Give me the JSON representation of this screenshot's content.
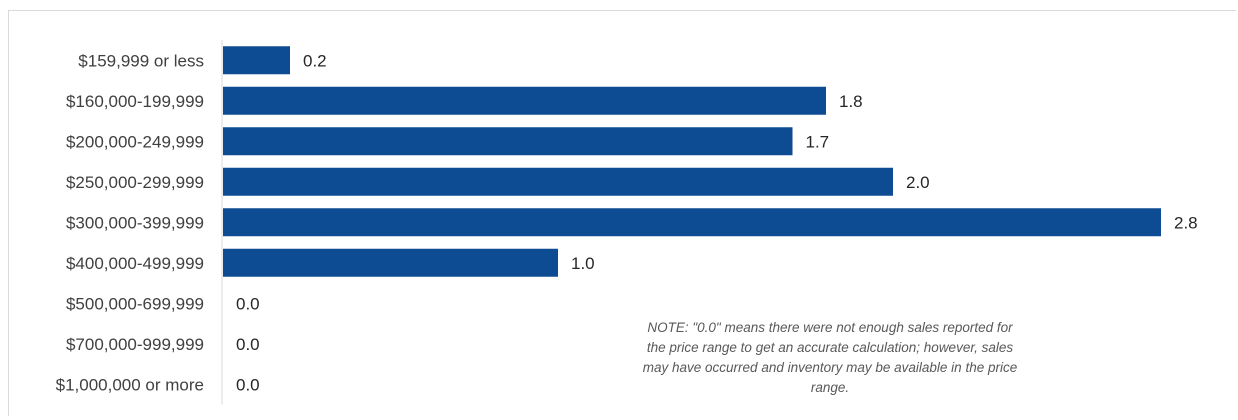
{
  "chart_data": {
    "type": "bar",
    "orientation": "horizontal",
    "categories": [
      "$159,999 or less",
      "$160,000-199,999",
      "$200,000-249,999",
      "$250,000-299,999",
      "$300,000-399,999",
      "$400,000-499,999",
      "$500,000-699,999",
      "$700,000-999,999",
      "$1,000,000 or more"
    ],
    "values": [
      0.2,
      1.8,
      1.7,
      2.0,
      2.8,
      1.0,
      0.0,
      0.0,
      0.0
    ],
    "value_labels": [
      "0.2",
      "1.8",
      "1.7",
      "2.0",
      "2.8",
      "1.0",
      "0.0",
      "0.0",
      "0.0"
    ],
    "xlim": [
      0,
      2.8
    ],
    "grid": false,
    "bar_color": "#0d4c92"
  },
  "note": {
    "text": "NOTE: \"0.0\" means there were not enough sales reported for the price range to get an accurate calculation;  however, sales may have occurred and inventory may be available in the price range."
  }
}
